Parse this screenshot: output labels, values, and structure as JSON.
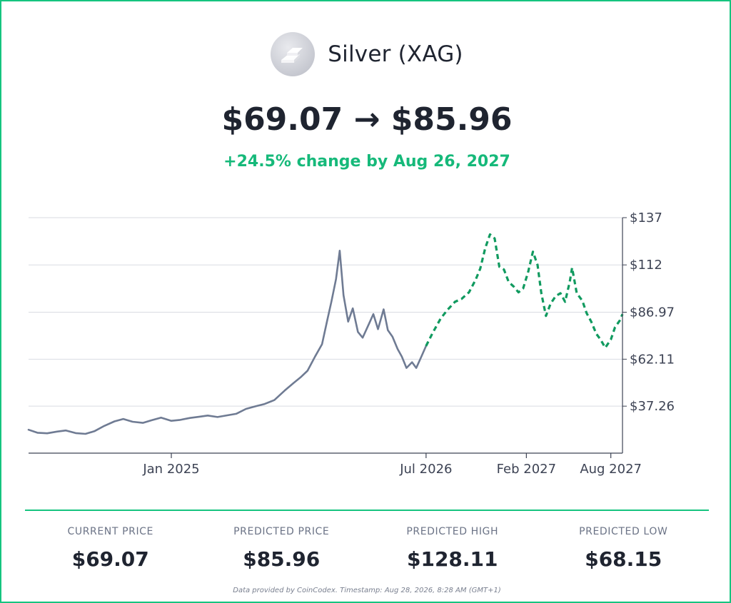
{
  "header": {
    "logo_icon": "silver-bars-icon",
    "asset_name": "Silver (XAG)"
  },
  "headline": {
    "price_transition": "$69.07 → $85.96",
    "change_text": "+24.5% change by Aug 26, 2027"
  },
  "colors": {
    "accent": "#16c47f",
    "change": "#16b97a",
    "historical_line": "#6f7b93",
    "forecast_line": "#109a5f",
    "grid": "#d9dbe2"
  },
  "chart_data": {
    "type": "line",
    "title": "",
    "xlabel": "",
    "ylabel": "",
    "ylim": [
      12.4,
      137
    ],
    "y_ticks": [
      {
        "value": 137,
        "label": "$137"
      },
      {
        "value": 112,
        "label": "$112"
      },
      {
        "value": 86.97,
        "label": "$86.97"
      },
      {
        "value": 62.11,
        "label": "$62.11"
      },
      {
        "value": 37.26,
        "label": "$37.26"
      }
    ],
    "x_ticks": [
      {
        "date": "2025-01-01",
        "label": "Jan 2025"
      },
      {
        "date": "2026-07-01",
        "label": "Jul 2026"
      },
      {
        "date": "2027-02-01",
        "label": "Feb 2027"
      },
      {
        "date": "2027-08-01",
        "label": "Aug 2027"
      }
    ],
    "x_range": [
      "2024-03-01",
      "2027-08-26"
    ],
    "grid": true,
    "series": [
      {
        "style": "solid",
        "points": [
          [
            "2024-03-01",
            24.8
          ],
          [
            "2024-03-20",
            23.2
          ],
          [
            "2024-04-10",
            22.9
          ],
          [
            "2024-05-01",
            23.8
          ],
          [
            "2024-05-20",
            24.4
          ],
          [
            "2024-06-10",
            23.0
          ],
          [
            "2024-07-01",
            22.6
          ],
          [
            "2024-07-20",
            24.0
          ],
          [
            "2024-08-10",
            26.8
          ],
          [
            "2024-09-01",
            29.2
          ],
          [
            "2024-09-20",
            30.5
          ],
          [
            "2024-10-10",
            29.0
          ],
          [
            "2024-11-01",
            28.4
          ],
          [
            "2024-11-20",
            29.8
          ],
          [
            "2024-12-10",
            31.2
          ],
          [
            "2025-01-01",
            29.5
          ],
          [
            "2025-01-20",
            30.0
          ],
          [
            "2025-02-10",
            31.0
          ],
          [
            "2025-03-01",
            31.6
          ],
          [
            "2025-03-20",
            32.3
          ],
          [
            "2025-04-10",
            31.5
          ],
          [
            "2025-05-01",
            32.4
          ],
          [
            "2025-05-20",
            33.2
          ],
          [
            "2025-06-10",
            35.8
          ],
          [
            "2025-07-01",
            37.2
          ],
          [
            "2025-07-20",
            38.4
          ],
          [
            "2025-08-10",
            40.5
          ],
          [
            "2025-09-01",
            45.5
          ],
          [
            "2025-09-20",
            49.5
          ],
          [
            "2025-10-05",
            52.5
          ],
          [
            "2025-10-20",
            56.0
          ],
          [
            "2025-11-05",
            63.5
          ],
          [
            "2025-11-20",
            70.0
          ],
          [
            "2025-12-01",
            82.5
          ],
          [
            "2025-12-10",
            92.5
          ],
          [
            "2025-12-20",
            104.5
          ],
          [
            "2025-12-28",
            119.5
          ],
          [
            "2026-01-05",
            96.0
          ],
          [
            "2026-01-15",
            82.0
          ],
          [
            "2026-01-25",
            89.0
          ],
          [
            "2026-02-05",
            76.5
          ],
          [
            "2026-02-15",
            73.5
          ],
          [
            "2026-03-01",
            81.0
          ],
          [
            "2026-03-10",
            86.0
          ],
          [
            "2026-03-20",
            78.0
          ],
          [
            "2026-04-01",
            88.5
          ],
          [
            "2026-04-10",
            77.5
          ],
          [
            "2026-04-20",
            74.0
          ],
          [
            "2026-05-01",
            67.5
          ],
          [
            "2026-05-10",
            63.5
          ],
          [
            "2026-05-20",
            57.5
          ],
          [
            "2026-06-01",
            60.5
          ],
          [
            "2026-06-10",
            57.5
          ],
          [
            "2026-06-20",
            63.0
          ],
          [
            "2026-07-01",
            69.07
          ]
        ]
      },
      {
        "style": "dashed",
        "points": [
          [
            "2026-07-01",
            69.07
          ],
          [
            "2026-07-15",
            76.0
          ],
          [
            "2026-08-01",
            83.5
          ],
          [
            "2026-08-15",
            88.0
          ],
          [
            "2026-09-01",
            92.5
          ],
          [
            "2026-09-15",
            94.0
          ],
          [
            "2026-10-01",
            97.5
          ],
          [
            "2026-10-15",
            104.0
          ],
          [
            "2026-10-25",
            110.0
          ],
          [
            "2026-11-05",
            121.0
          ],
          [
            "2026-11-15",
            128.11
          ],
          [
            "2026-11-25",
            126.0
          ],
          [
            "2026-12-05",
            111.0
          ],
          [
            "2026-12-15",
            109.5
          ],
          [
            "2026-12-25",
            103.0
          ],
          [
            "2027-01-05",
            100.5
          ],
          [
            "2027-01-15",
            97.5
          ],
          [
            "2027-01-25",
            99.5
          ],
          [
            "2027-02-05",
            108.5
          ],
          [
            "2027-02-15",
            119.0
          ],
          [
            "2027-02-25",
            112.0
          ],
          [
            "2027-03-05",
            97.0
          ],
          [
            "2027-03-15",
            85.0
          ],
          [
            "2027-03-25",
            91.5
          ],
          [
            "2027-04-05",
            95.5
          ],
          [
            "2027-04-15",
            97.0
          ],
          [
            "2027-04-25",
            92.5
          ],
          [
            "2027-05-05",
            103.0
          ],
          [
            "2027-05-10",
            110.5
          ],
          [
            "2027-05-20",
            97.0
          ],
          [
            "2027-06-01",
            93.0
          ],
          [
            "2027-06-10",
            86.5
          ],
          [
            "2027-06-20",
            82.0
          ],
          [
            "2027-07-01",
            75.5
          ],
          [
            "2027-07-10",
            72.5
          ],
          [
            "2027-07-20",
            68.15
          ],
          [
            "2027-08-01",
            72.5
          ],
          [
            "2027-08-10",
            79.0
          ],
          [
            "2027-08-20",
            82.5
          ],
          [
            "2027-08-26",
            85.96
          ]
        ]
      }
    ]
  },
  "stats": [
    {
      "label": "CURRENT PRICE",
      "value": "$69.07"
    },
    {
      "label": "PREDICTED PRICE",
      "value": "$85.96"
    },
    {
      "label": "PREDICTED HIGH",
      "value": "$128.11"
    },
    {
      "label": "PREDICTED LOW",
      "value": "$68.15"
    }
  ],
  "footnote": "Data provided by CoinCodex. Timestamp: Aug 28, 2026, 8:28 AM (GMT+1)"
}
